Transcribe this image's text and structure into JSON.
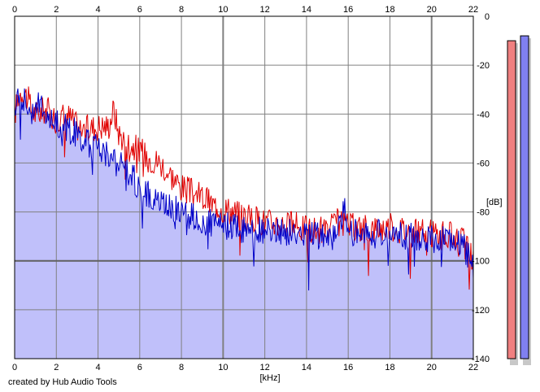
{
  "credit": "created by Hub Audio Tools",
  "chart_data": {
    "type": "area",
    "xlabel": "[kHz]",
    "ylabel": "[dB]",
    "xlim": [
      0,
      22
    ],
    "ylim": [
      -140,
      0
    ],
    "x_ticks": [
      0,
      2,
      4,
      6,
      8,
      10,
      12,
      14,
      16,
      18,
      20,
      22
    ],
    "y_ticks": [
      0,
      -20,
      -40,
      -60,
      -80,
      -100,
      -120,
      -140
    ],
    "grid": true,
    "colors": {
      "plot_background": "#c0c0fa",
      "red_series": "#e00000",
      "blue_series": "#0000c8",
      "grid": "#808080",
      "red_meter": "#f08080",
      "blue_meter": "#8080f0"
    },
    "series": [
      {
        "color": "red",
        "x": [
          0,
          0.2,
          0.4,
          0.6,
          0.8,
          1.0,
          1.5,
          2.0,
          2.5,
          3.0,
          3.5,
          4.0,
          4.5,
          4.75,
          5.0,
          5.5,
          6.0,
          6.5,
          7.0,
          7.5,
          8.0,
          8.5,
          9.0,
          9.5,
          10.0,
          10.5,
          11.0,
          12.0,
          13.0,
          14.0,
          15.0,
          15.5,
          16.0,
          17.0,
          18.0,
          19.0,
          20.0,
          21.0,
          21.5,
          22.0
        ],
        "values": [
          -40,
          -32,
          -30,
          -33,
          -38,
          -40,
          -38,
          -42,
          -40,
          -45,
          -46,
          -45,
          -45,
          -38,
          -48,
          -52,
          -55,
          -58,
          -60,
          -65,
          -70,
          -72,
          -74,
          -77,
          -78,
          -80,
          -82,
          -84,
          -85,
          -87,
          -88,
          -84,
          -86,
          -87,
          -86,
          -88,
          -89,
          -90,
          -92,
          -100
        ]
      },
      {
        "color": "blue",
        "x": [
          0,
          0.2,
          0.4,
          0.6,
          0.8,
          1.0,
          1.5,
          2.0,
          2.5,
          3.0,
          3.5,
          4.0,
          4.5,
          5.0,
          5.5,
          6.0,
          6.5,
          7.0,
          7.5,
          8.0,
          8.5,
          9.0,
          9.5,
          10.0,
          10.5,
          11.0,
          12.0,
          13.0,
          14.0,
          15.0,
          15.5,
          15.8,
          16.0,
          17.0,
          18.0,
          19.0,
          20.0,
          21.0,
          21.5,
          22.0
        ],
        "values": [
          -42,
          -30,
          -33,
          -36,
          -40,
          -34,
          -40,
          -44,
          -46,
          -48,
          -52,
          -54,
          -56,
          -60,
          -64,
          -70,
          -74,
          -76,
          -78,
          -80,
          -82,
          -84,
          -85,
          -86,
          -86,
          -87,
          -88,
          -88,
          -89,
          -90,
          -90,
          -75,
          -88,
          -89,
          -89,
          -90,
          -91,
          -92,
          -94,
          -102
        ]
      }
    ],
    "meters": [
      {
        "color": "red",
        "level_db": -10
      },
      {
        "color": "blue",
        "level_db": -8
      }
    ]
  }
}
